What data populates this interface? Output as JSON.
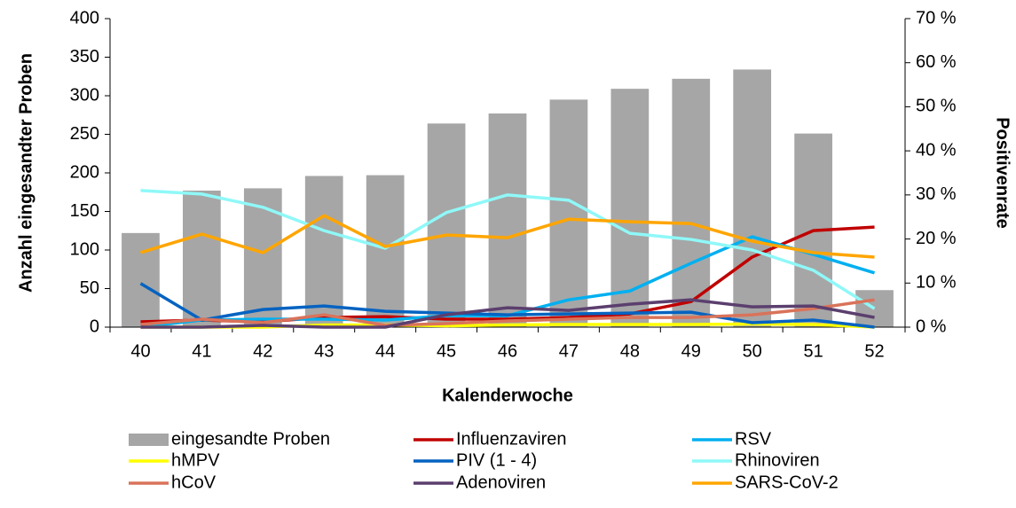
{
  "chart_data": {
    "type": "bar",
    "x_label": "Kalenderwoche",
    "y_label": "Anzahl eingesandter Proben",
    "y2_label": "Positivenrate",
    "categories": [
      "40",
      "41",
      "42",
      "43",
      "44",
      "45",
      "46",
      "47",
      "48",
      "49",
      "50",
      "51",
      "52"
    ],
    "ylim": [
      0,
      400
    ],
    "yticks": [
      0,
      50,
      100,
      150,
      200,
      250,
      300,
      350,
      400
    ],
    "y2lim": [
      0,
      70
    ],
    "y2ticks": [
      {
        "value": 0,
        "label": "0 %"
      },
      {
        "value": 10,
        "label": "10 %"
      },
      {
        "value": 20,
        "label": "20 %"
      },
      {
        "value": 30,
        "label": "30 %"
      },
      {
        "value": 40,
        "label": "40 %"
      },
      {
        "value": 50,
        "label": "50 %"
      },
      {
        "value": 60,
        "label": "60 %"
      },
      {
        "value": 70,
        "label": "70 %"
      }
    ],
    "series": [
      {
        "name": "eingesandte Proben",
        "type": "bar",
        "color": "#a6a6a6",
        "values": [
          122,
          177,
          180,
          196,
          197,
          264,
          277,
          295,
          309,
          322,
          334,
          251,
          48
        ]
      },
      {
        "name": "Influenzaviren",
        "type": "line",
        "axis": "y2",
        "color": "#c00000",
        "values": [
          1.2,
          1.6,
          1.2,
          2.2,
          2.4,
          1.8,
          1.8,
          2.2,
          3,
          5.8,
          15.9,
          21.9,
          22.7
        ]
      },
      {
        "name": "RSV",
        "type": "line",
        "axis": "y2",
        "color": "#00b0f0",
        "values": [
          0,
          1.6,
          1.8,
          1.8,
          1.6,
          2.6,
          2.6,
          6.2,
          8.2,
          14.5,
          20.5,
          16.5,
          12.3
        ]
      },
      {
        "name": "hMPV",
        "type": "line",
        "axis": "y2",
        "color": "#ffff00",
        "values": [
          0,
          0,
          0,
          0.5,
          0.5,
          0.3,
          0.5,
          0.6,
          0.6,
          0.6,
          0.7,
          0.6,
          0
        ]
      },
      {
        "name": "PIV (1 - 4)",
        "type": "line",
        "axis": "y2",
        "color": "#0563c1",
        "values": [
          9.9,
          1.6,
          4,
          4.8,
          3.6,
          3.2,
          2.8,
          3,
          3.2,
          3.4,
          1,
          1.6,
          0
        ]
      },
      {
        "name": "Rhinoviren",
        "type": "line",
        "axis": "y2",
        "color": "#8ff8f8",
        "values": [
          31,
          30.2,
          27.2,
          21.9,
          17.9,
          26,
          30,
          28.8,
          21.3,
          19.9,
          17.5,
          12.9,
          4.2
        ]
      },
      {
        "name": "hCoV",
        "type": "line",
        "axis": "y2",
        "color": "#d9735a",
        "values": [
          0.6,
          1.8,
          1,
          2.8,
          0.4,
          0.8,
          1.4,
          1.8,
          2.2,
          2.2,
          2.8,
          4.2,
          6.2
        ]
      },
      {
        "name": "Adenoviren",
        "type": "line",
        "axis": "y2",
        "color": "#5b3f6e",
        "values": [
          0,
          0,
          0.4,
          0,
          0,
          2.8,
          4.4,
          3.8,
          5.2,
          6.2,
          4.6,
          4.8,
          2.2
        ]
      },
      {
        "name": "SARS-CoV-2",
        "type": "line",
        "axis": "y2",
        "color": "#ffa500",
        "values": [
          16.9,
          21.1,
          16.9,
          25.3,
          18.3,
          20.9,
          20.3,
          24.5,
          23.9,
          23.5,
          19.5,
          16.9,
          15.9
        ]
      }
    ]
  }
}
